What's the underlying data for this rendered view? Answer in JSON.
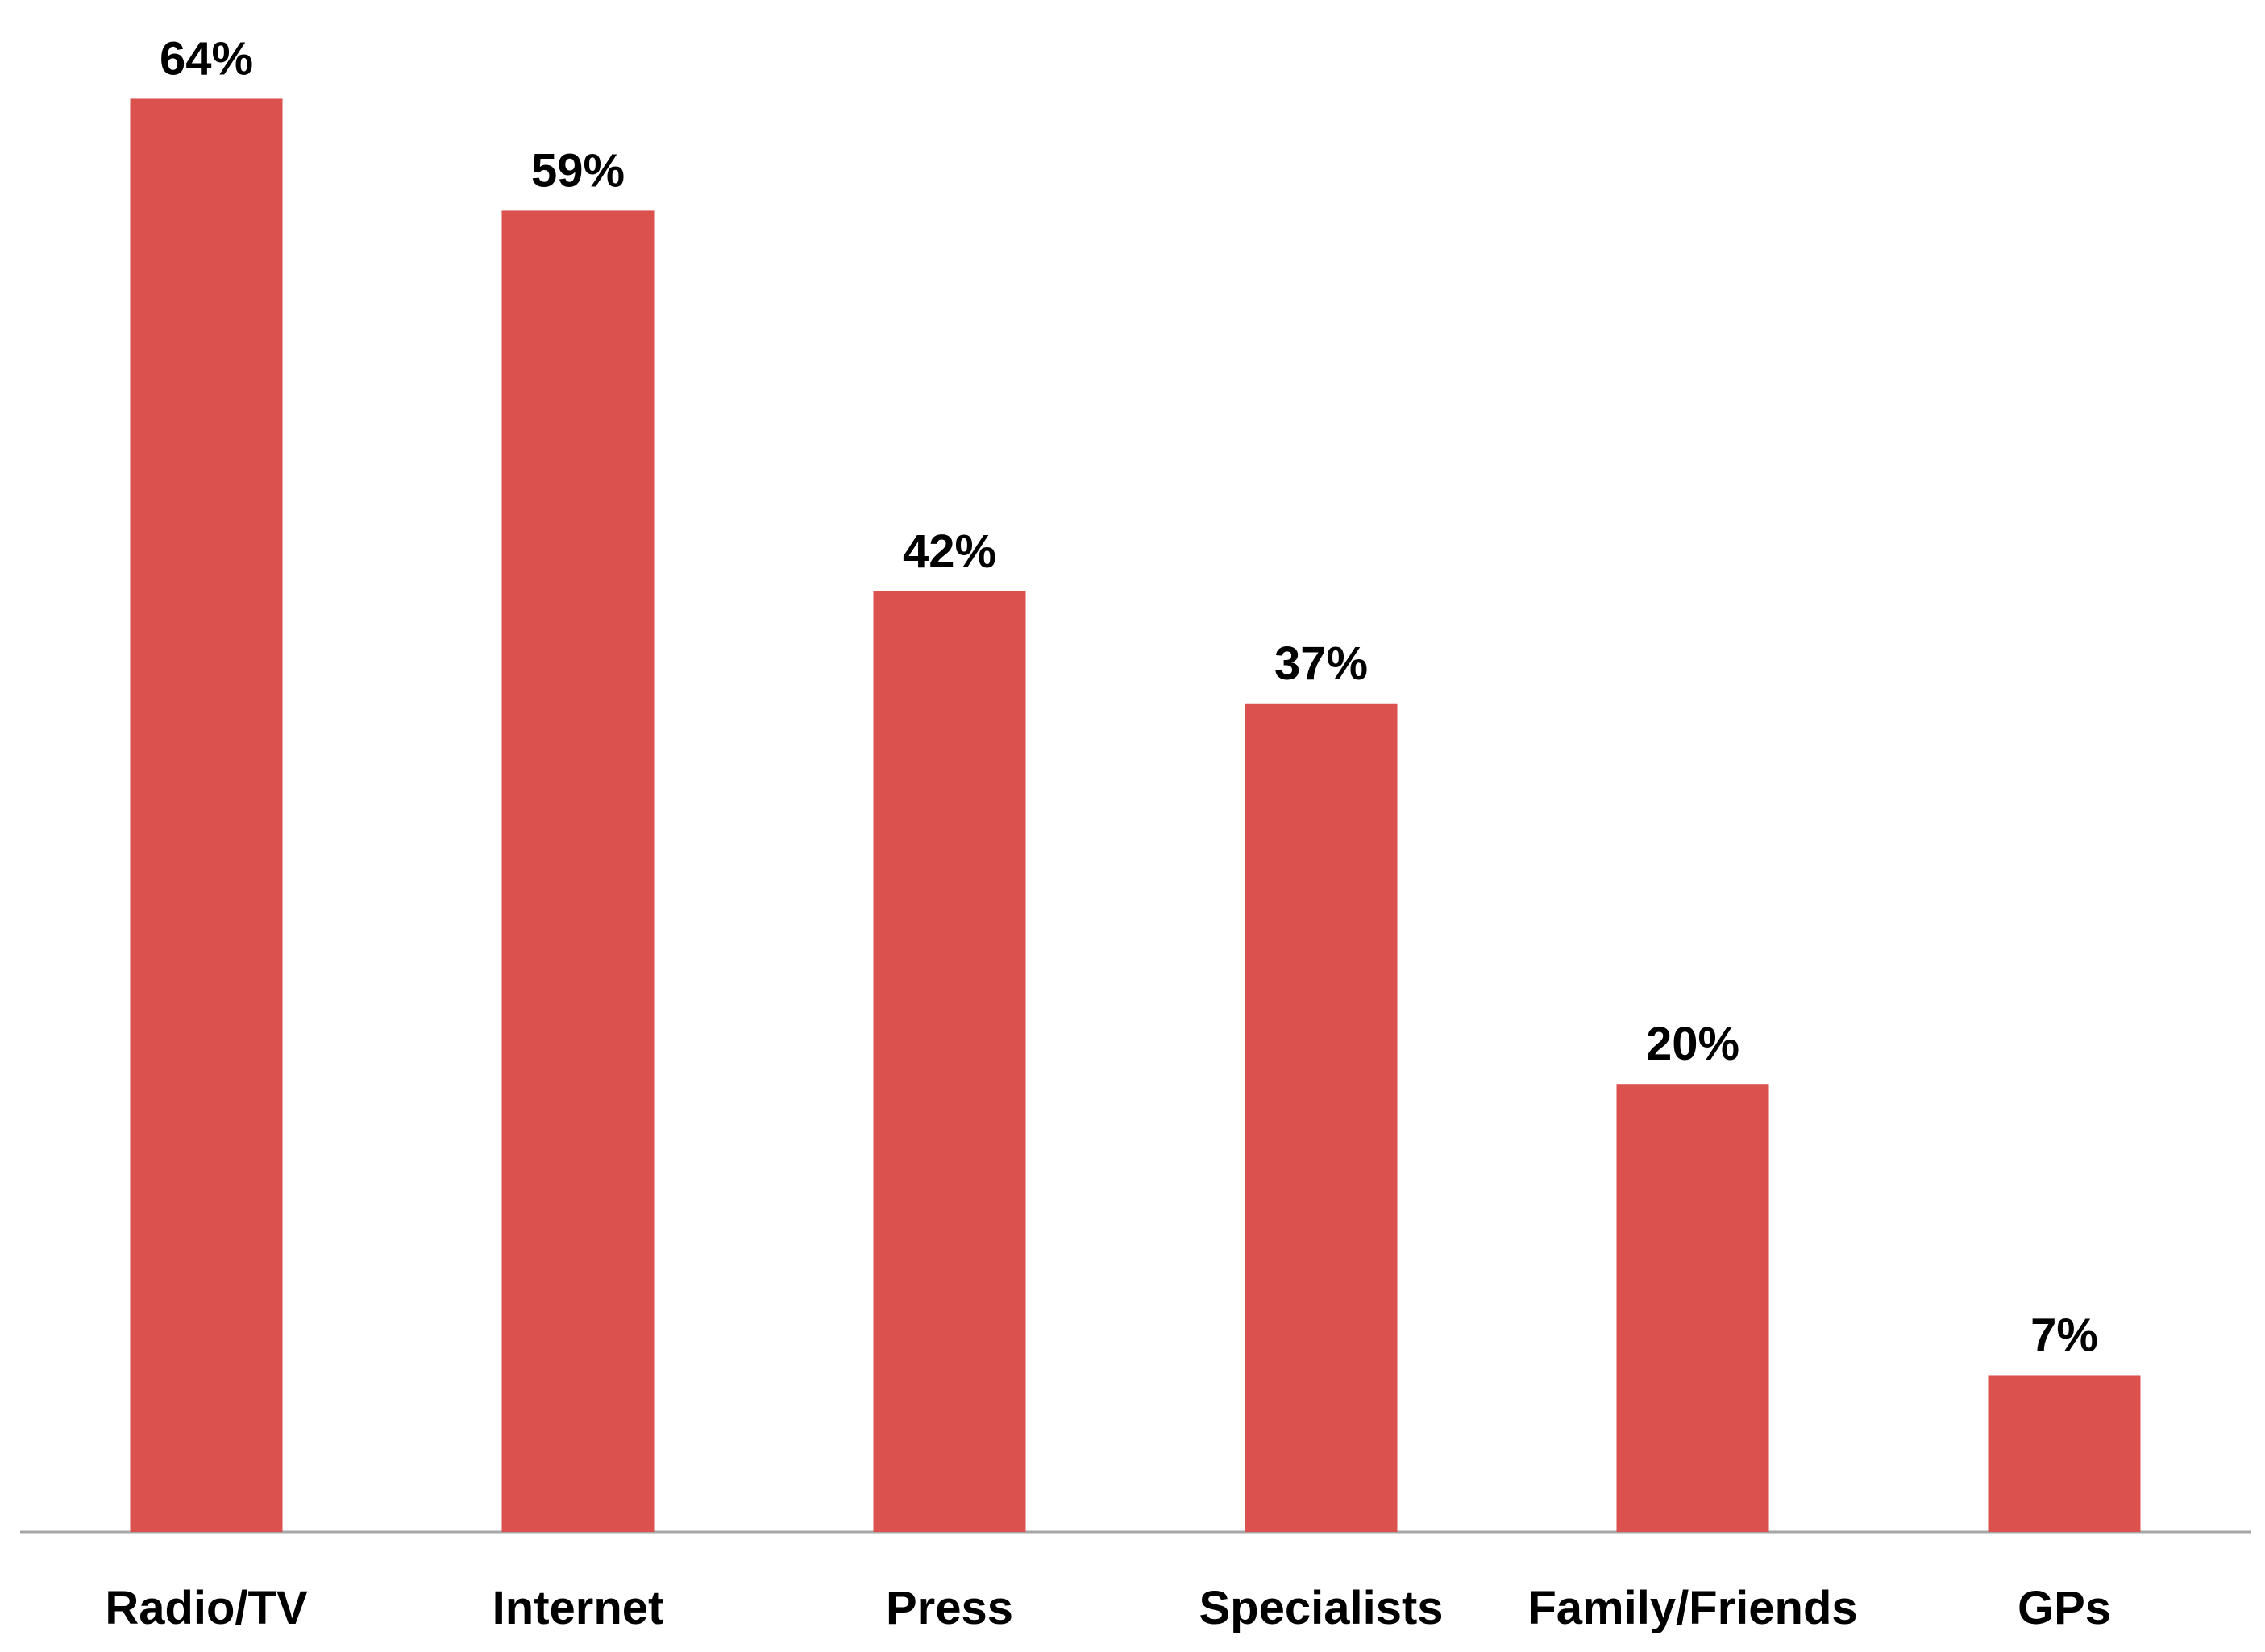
{
  "chart_data": {
    "type": "bar",
    "categories": [
      "Radio/TV",
      "Internet",
      "Press",
      "Specialists",
      "Family/Friends",
      "GPs"
    ],
    "values": [
      64,
      59,
      42,
      37,
      20,
      7
    ],
    "value_labels": [
      "64%",
      "59%",
      "42%",
      "37%",
      "20%",
      "7%"
    ],
    "color": "#db514e"
  }
}
